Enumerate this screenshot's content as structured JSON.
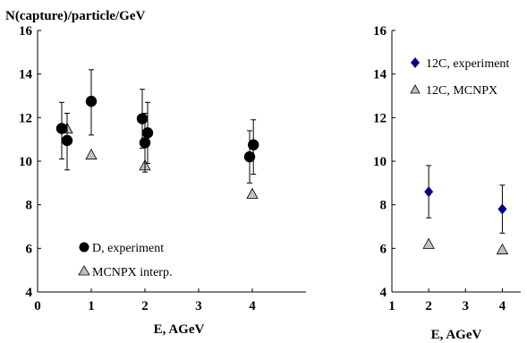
{
  "chart_data": [
    {
      "type": "scatter",
      "title": "N(capture)/particle/GeV",
      "xlabel": "E, AGeV",
      "ylabel": "",
      "xlim": [
        0,
        5
      ],
      "ylim": [
        4,
        16
      ],
      "xticks": [
        "0",
        "1",
        "2",
        "3",
        "4"
      ],
      "yticks": [
        "4",
        "6",
        "8",
        "10",
        "12",
        "14",
        "16"
      ],
      "grid": false,
      "legend_position": "bottom-left",
      "series": [
        {
          "name": "D, experiment",
          "marker": "circle",
          "color": "#000000",
          "points": [
            {
              "x": 0.45,
              "y": 11.5,
              "yerr_low": 10.1,
              "yerr_high": 12.7
            },
            {
              "x": 0.55,
              "y": 10.95,
              "yerr_low": 9.6,
              "yerr_high": 12.2
            },
            {
              "x": 1.0,
              "y": 12.75,
              "yerr_low": 11.2,
              "yerr_high": 14.2
            },
            {
              "x": 1.95,
              "y": 11.95,
              "yerr_low": 10.6,
              "yerr_high": 13.3
            },
            {
              "x": 2.0,
              "y": 10.85,
              "yerr_low": 9.5,
              "yerr_high": 12.2
            },
            {
              "x": 2.05,
              "y": 11.3,
              "yerr_low": 9.9,
              "yerr_high": 12.7
            },
            {
              "x": 3.95,
              "y": 10.2,
              "yerr_low": 9.0,
              "yerr_high": 11.4
            },
            {
              "x": 4.02,
              "y": 10.75,
              "yerr_low": 9.4,
              "yerr_high": 11.9
            }
          ]
        },
        {
          "name": "MCNPX interp.",
          "marker": "triangle",
          "color": "#c0c0c0",
          "points": [
            {
              "x": 0.55,
              "y": 11.5
            },
            {
              "x": 1.0,
              "y": 10.3
            },
            {
              "x": 2.0,
              "y": 9.8
            },
            {
              "x": 4.0,
              "y": 8.5
            }
          ]
        }
      ]
    },
    {
      "type": "scatter",
      "title": "",
      "xlabel": "E, AGeV",
      "ylabel": "",
      "xlim": [
        1,
        4.5
      ],
      "ylim": [
        4,
        16
      ],
      "xticks": [
        "1",
        "2",
        "3",
        "4"
      ],
      "yticks": [
        "4",
        "6",
        "8",
        "10",
        "12",
        "14",
        "16"
      ],
      "grid": false,
      "legend_position": "top-left",
      "series": [
        {
          "name": "12C, experiment",
          "marker": "diamond",
          "color": "#00008b",
          "points": [
            {
              "x": 2.0,
              "y": 8.6,
              "yerr_low": 7.4,
              "yerr_high": 9.8
            },
            {
              "x": 4.0,
              "y": 7.8,
              "yerr_low": 6.7,
              "yerr_high": 8.9
            }
          ]
        },
        {
          "name": "12C, MCNPX",
          "marker": "triangle",
          "color": "#c0c0c0",
          "points": [
            {
              "x": 2.0,
              "y": 6.2
            },
            {
              "x": 4.0,
              "y": 5.95
            }
          ]
        }
      ]
    }
  ]
}
